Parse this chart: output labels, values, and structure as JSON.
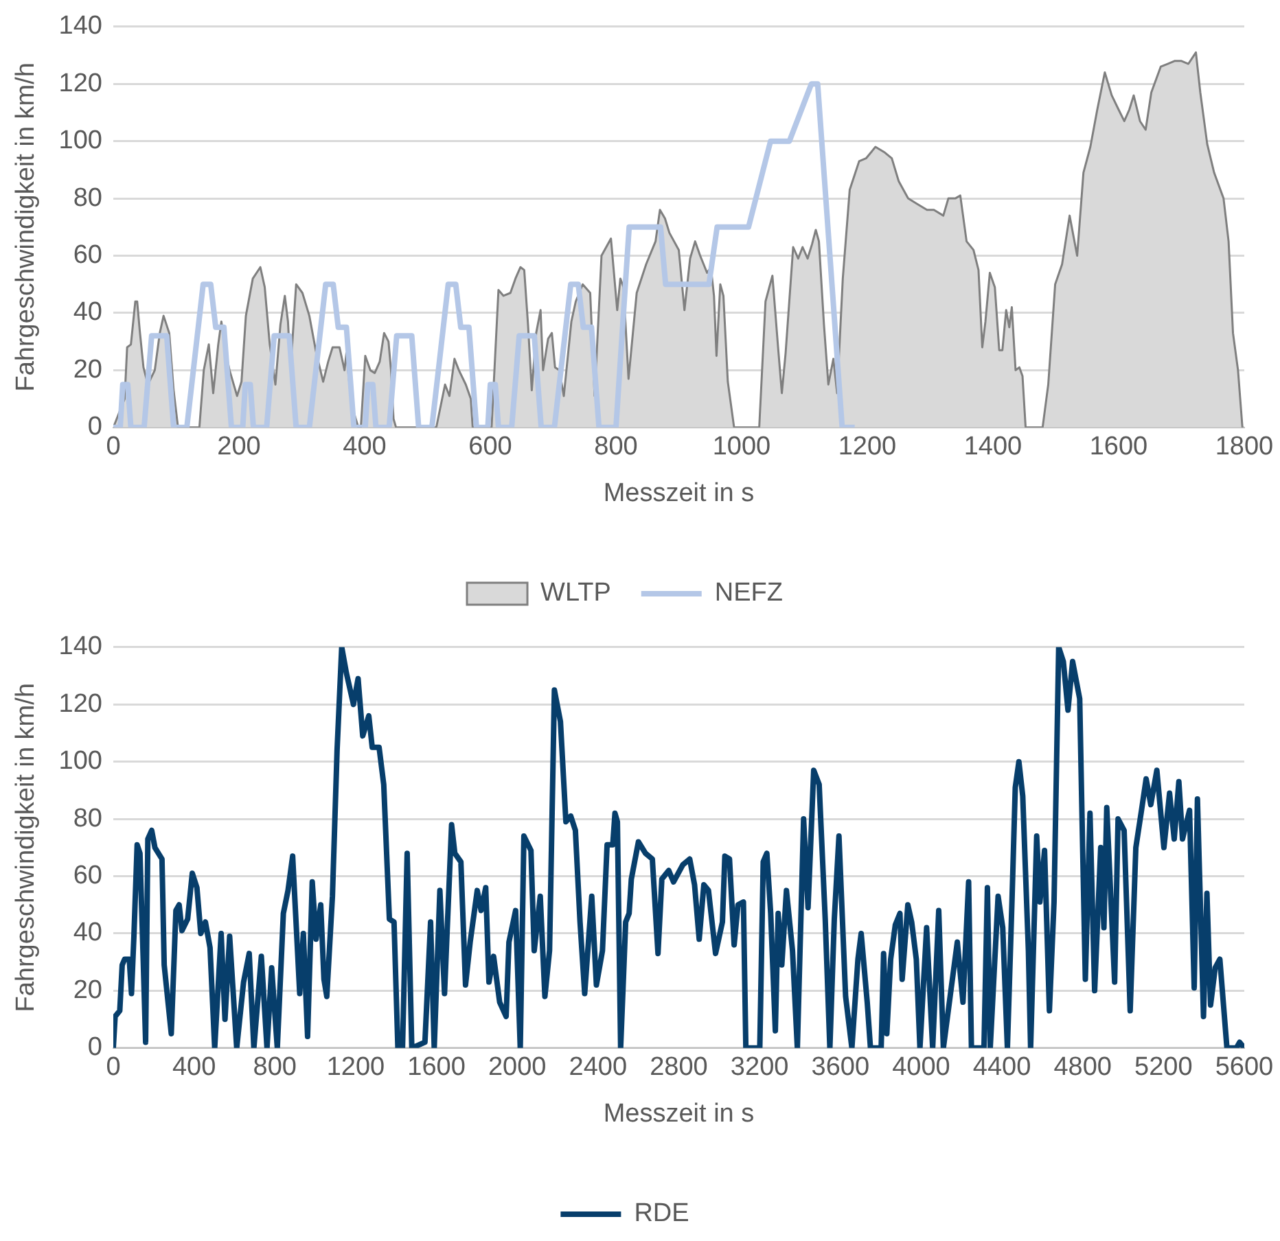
{
  "chart_data": [
    {
      "type": "area",
      "xlabel": "Messzeit in s",
      "ylabel": "Fahrgeschwindigkeit in km/h",
      "xlim": [
        0,
        1800
      ],
      "xticks": [
        0,
        200,
        400,
        600,
        800,
        1000,
        1200,
        1400,
        1600,
        1800
      ],
      "ylim": [
        0,
        140
      ],
      "yticks": [
        0,
        20,
        40,
        60,
        80,
        100,
        120,
        140
      ],
      "grid": "y",
      "legend": "bottom",
      "series": [
        {
          "name": "WLTP",
          "color": "#d9d9d9",
          "x": [
            0,
            18,
            22,
            28,
            35,
            38,
            42,
            48,
            55,
            66,
            74,
            80,
            89,
            96,
            103,
            137,
            144,
            152,
            159,
            167,
            172,
            179,
            185,
            197,
            204,
            211,
            222,
            234,
            241,
            249,
            258,
            266,
            273,
            278,
            282,
            291,
            301,
            312,
            323,
            334,
            342,
            349,
            360,
            368,
            371,
            379,
            390,
            394,
            401,
            409,
            416,
            424,
            431,
            438,
            442,
            446,
            450,
            514,
            528,
            535,
            543,
            550,
            561,
            569,
            572,
            602,
            613,
            621,
            632,
            640,
            648,
            654,
            660,
            666,
            673,
            680,
            684,
            692,
            698,
            703,
            710,
            717,
            729,
            736,
            747,
            759,
            766,
            777,
            792,
            802,
            807,
            812,
            820,
            833,
            848,
            863,
            870,
            878,
            885,
            900,
            909,
            918,
            926,
            934,
            945,
            951,
            956,
            960,
            966,
            971,
            978,
            988,
            1028,
            1038,
            1049,
            1058,
            1064,
            1070,
            1082,
            1090,
            1097,
            1105,
            1112,
            1118,
            1123,
            1131,
            1138,
            1146,
            1152,
            1161,
            1172,
            1187,
            1198,
            1213,
            1228,
            1239,
            1250,
            1265,
            1280,
            1295,
            1306,
            1321,
            1329,
            1340,
            1348,
            1358,
            1369,
            1377,
            1383,
            1388,
            1395,
            1403,
            1410,
            1415,
            1421,
            1426,
            1430,
            1436,
            1442,
            1447,
            1452,
            1479,
            1488,
            1499,
            1510,
            1522,
            1534,
            1544,
            1555,
            1566,
            1578,
            1589,
            1600,
            1609,
            1617,
            1624,
            1634,
            1643,
            1652,
            1667,
            1678,
            1689,
            1700,
            1711,
            1723,
            1730,
            1741,
            1752,
            1767,
            1775,
            1782,
            1790,
            1797
          ],
          "values": [
            0,
            10,
            28,
            29,
            44,
            44,
            34,
            21,
            15,
            20,
            33,
            39,
            33,
            13,
            0,
            0,
            20,
            29,
            12,
            29,
            37,
            26,
            20,
            11,
            16,
            39,
            52,
            56,
            49,
            29,
            15,
            36,
            46,
            37,
            20,
            50,
            47,
            39,
            26,
            16,
            23,
            28,
            28,
            20,
            26,
            8,
            0,
            0,
            25,
            20,
            19,
            23,
            33,
            30,
            20,
            3,
            0,
            0,
            15,
            11,
            24,
            20,
            15,
            10,
            0,
            0,
            48,
            46,
            47,
            52,
            56,
            55,
            36,
            13,
            33,
            41,
            20,
            31,
            33,
            21,
            20,
            11,
            37,
            44,
            50,
            47,
            11,
            60,
            66,
            41,
            52,
            49,
            17,
            47,
            57,
            65,
            76,
            73,
            68,
            62,
            41,
            59,
            65,
            60,
            54,
            56,
            46,
            25,
            50,
            46,
            16,
            0,
            0,
            44,
            53,
            28,
            12,
            26,
            63,
            59,
            63,
            59,
            64,
            69,
            65,
            36,
            15,
            24,
            12,
            52,
            83,
            93,
            94,
            98,
            96,
            94,
            86,
            80,
            78,
            76,
            76,
            74,
            80,
            80,
            81,
            65,
            62,
            55,
            28,
            37,
            54,
            49,
            27,
            27,
            41,
            35,
            42,
            20,
            21,
            18,
            0,
            0,
            15,
            50,
            57,
            74,
            60,
            89,
            98,
            111,
            124,
            116,
            111,
            107,
            111,
            116,
            107,
            104,
            117,
            126,
            127,
            128,
            128,
            127,
            131,
            117,
            99,
            89,
            80,
            65,
            33,
            20,
            0
          ]
        },
        {
          "name": "NEFZ",
          "type": "line",
          "color": "#b4c7e7",
          "x": [
            0,
            11,
            15,
            23,
            28,
            49,
            61,
            85,
            96,
            117,
            143,
            155,
            163,
            176,
            188,
            206,
            210,
            218,
            223,
            244,
            256,
            280,
            291,
            312,
            338,
            350,
            358,
            371,
            383,
            401,
            405,
            413,
            418,
            439,
            451,
            475,
            486,
            507,
            533,
            545,
            553,
            566,
            578,
            596,
            600,
            608,
            613,
            634,
            646,
            670,
            681,
            702,
            728,
            740,
            748,
            761,
            773,
            800,
            821,
            871,
            879,
            948,
            961,
            1011,
            1046,
            1076,
            1111,
            1121,
            1160,
            1180
          ],
          "values": [
            0,
            0,
            15,
            15,
            0,
            0,
            32,
            32,
            0,
            0,
            50,
            50,
            35,
            35,
            0,
            0,
            15,
            15,
            0,
            0,
            32,
            32,
            0,
            0,
            50,
            50,
            35,
            35,
            0,
            0,
            15,
            15,
            0,
            0,
            32,
            32,
            0,
            0,
            50,
            50,
            35,
            35,
            0,
            0,
            15,
            15,
            0,
            0,
            32,
            32,
            0,
            0,
            50,
            50,
            35,
            35,
            0,
            0,
            70,
            70,
            50,
            50,
            70,
            70,
            100,
            100,
            120,
            120,
            0,
            0
          ]
        }
      ]
    },
    {
      "type": "line",
      "xlabel": "Messzeit in s",
      "ylabel": "Fahrgeschwindigkeit in km/h",
      "xlim": [
        0,
        5600
      ],
      "xticks": [
        0,
        400,
        800,
        1200,
        1600,
        2000,
        2400,
        2800,
        3200,
        3600,
        4000,
        4400,
        4800,
        5200,
        5600
      ],
      "ylim": [
        0,
        140
      ],
      "yticks": [
        0,
        20,
        40,
        60,
        80,
        100,
        120,
        140
      ],
      "grid": "y",
      "legend": "bottom",
      "series": [
        {
          "name": "RDE",
          "color": "#073e6b",
          "x": [
            0,
            9,
            32,
            44,
            56,
            79,
            90,
            102,
            118,
            132,
            148,
            160,
            171,
            190,
            206,
            241,
            252,
            287,
            310,
            326,
            340,
            368,
            391,
            414,
            433,
            456,
            479,
            502,
            534,
            553,
            576,
            611,
            645,
            673,
            696,
            733,
            761,
            784,
            812,
            842,
            865,
            888,
            923,
            941,
            962,
            985,
            1004,
            1027,
            1043,
            1057,
            1085,
            1108,
            1131,
            1154,
            1189,
            1212,
            1235,
            1265,
            1282,
            1316,
            1339,
            1367,
            1390,
            1409,
            1432,
            1455,
            1478,
            1543,
            1571,
            1589,
            1617,
            1640,
            1675,
            1691,
            1721,
            1744,
            1767,
            1802,
            1821,
            1844,
            1860,
            1883,
            1913,
            1945,
            1959,
            1992,
            2015,
            2033,
            2068,
            2084,
            2114,
            2137,
            2160,
            2184,
            2214,
            2241,
            2265,
            2288,
            2311,
            2334,
            2369,
            2392,
            2422,
            2445,
            2473,
            2484,
            2496,
            2512,
            2537,
            2554,
            2565,
            2600,
            2635,
            2669,
            2697,
            2716,
            2750,
            2774,
            2820,
            2854,
            2878,
            2901,
            2924,
            2947,
            2982,
            3016,
            3028,
            3051,
            3074,
            3093,
            3120,
            3132,
            3201,
            3218,
            3236,
            3255,
            3278,
            3292,
            3310,
            3333,
            3363,
            3387,
            3418,
            3440,
            3468,
            3495,
            3525,
            3548,
            3570,
            3593,
            3626,
            3657,
            3687,
            3703,
            3733,
            3749,
            3802,
            3814,
            3830,
            3849,
            3872,
            3895,
            3906,
            3934,
            3953,
            3976,
            3994,
            4027,
            4057,
            4087,
            4110,
            4149,
            4179,
            4207,
            4235,
            4249,
            4311,
            4328,
            4342,
            4381,
            4404,
            4427,
            4450,
            4466,
            4484,
            4503,
            4531,
            4542,
            4572,
            4588,
            4611,
            4635,
            4658,
            4681,
            4704,
            4727,
            4750,
            4785,
            4797,
            4813,
            4836,
            4859,
            4889,
            4905,
            4919,
            4958,
            4975,
            5005,
            5035,
            5063,
            5091,
            5114,
            5137,
            5167,
            5202,
            5230,
            5253,
            5276,
            5294,
            5329,
            5352,
            5368,
            5398,
            5415,
            5433,
            5456,
            5479,
            5514,
            5561,
            5577,
            5600
          ],
          "values": [
            0,
            11,
            13,
            29,
            31,
            31,
            19,
            39,
            71,
            68,
            31,
            2,
            73,
            76,
            70,
            66,
            29,
            5,
            48,
            50,
            41,
            45,
            61,
            56,
            40,
            44,
            35,
            0,
            40,
            10,
            39,
            0,
            23,
            33,
            0,
            32,
            0,
            28,
            0,
            47,
            55,
            67,
            19,
            40,
            4,
            58,
            38,
            50,
            24,
            18,
            53,
            104,
            140,
            131,
            120,
            129,
            109,
            116,
            105,
            105,
            92,
            45,
            44,
            0,
            0,
            68,
            0,
            2,
            44,
            0,
            55,
            19,
            78,
            68,
            65,
            22,
            37,
            55,
            48,
            56,
            23,
            32,
            16,
            11,
            37,
            48,
            0,
            74,
            69,
            34,
            53,
            18,
            34,
            125,
            114,
            79,
            81,
            76,
            44,
            19,
            53,
            22,
            34,
            71,
            71,
            82,
            79,
            0,
            44,
            47,
            59,
            72,
            68,
            66,
            33,
            59,
            62,
            58,
            64,
            66,
            57,
            38,
            57,
            55,
            33,
            44,
            67,
            66,
            36,
            50,
            51,
            0,
            0,
            65,
            68,
            47,
            6,
            47,
            29,
            55,
            34,
            0,
            80,
            49,
            97,
            92,
            45,
            0,
            45,
            74,
            18,
            0,
            31,
            40,
            16,
            0,
            0,
            33,
            5,
            31,
            43,
            47,
            24,
            50,
            44,
            31,
            0,
            42,
            0,
            48,
            0,
            21,
            37,
            16,
            58,
            0,
            0,
            56,
            0,
            53,
            42,
            0,
            52,
            91,
            100,
            88,
            34,
            0,
            74,
            51,
            69,
            13,
            51,
            140,
            135,
            118,
            135,
            122,
            79,
            24,
            82,
            20,
            70,
            42,
            84,
            23,
            80,
            76,
            13,
            70,
            83,
            94,
            85,
            97,
            70,
            89,
            73,
            93,
            73,
            83,
            21,
            87,
            11,
            54,
            15,
            28,
            31,
            0,
            0,
            2,
            0
          ]
        }
      ]
    }
  ]
}
